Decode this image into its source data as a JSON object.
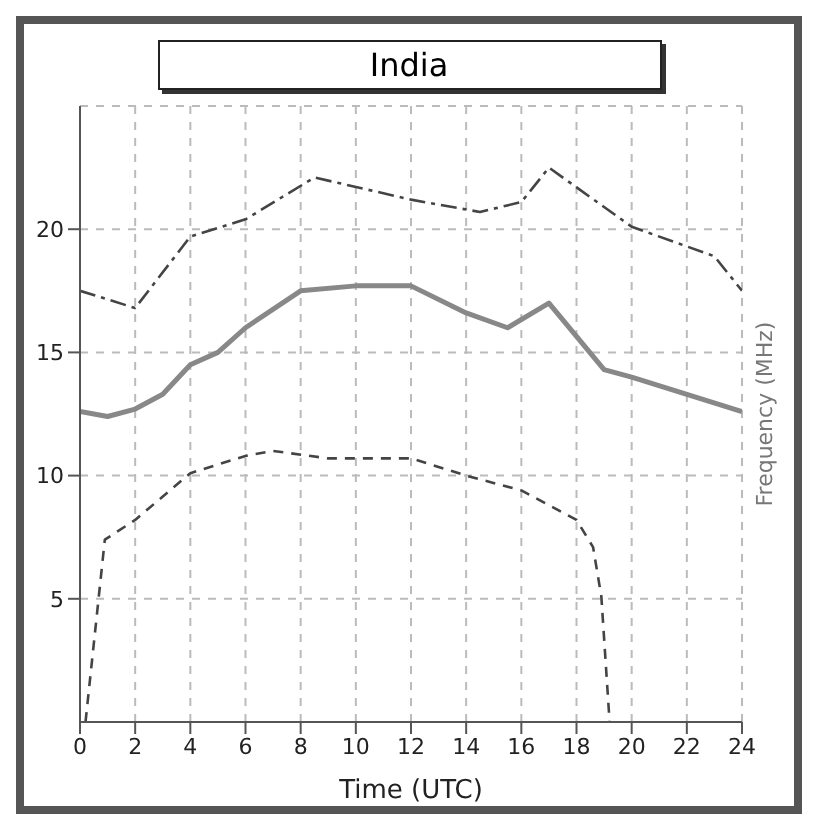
{
  "chart_data": {
    "type": "line",
    "title": "India",
    "xlabel": "Time (UTC)",
    "ylabel": "Frequency (MHz)",
    "xlim": [
      0,
      24
    ],
    "xticks": [
      0,
      2,
      4,
      6,
      8,
      10,
      12,
      14,
      16,
      18,
      20,
      22,
      24
    ],
    "ylim": [
      0,
      25
    ],
    "yticks": [
      5,
      10,
      15,
      20
    ],
    "grid": true,
    "marker": "none",
    "series": [
      {
        "color": "#444444",
        "line_style": "dashdot",
        "x": [
          0,
          2,
          4,
          6,
          8.5,
          12,
          14.5,
          16,
          17,
          20,
          23,
          24
        ],
        "values": [
          17.5,
          16.8,
          19.7,
          20.4,
          22.1,
          21.2,
          20.7,
          21.1,
          22.5,
          20.1,
          18.9,
          17.5
        ]
      },
      {
        "color": "#888888",
        "line_style": "solid",
        "x": [
          0,
          1,
          2,
          3,
          4,
          5,
          6,
          8,
          10,
          12,
          14,
          15.5,
          17,
          19,
          20,
          24
        ],
        "values": [
          12.6,
          12.4,
          12.7,
          13.3,
          14.5,
          15.0,
          16.0,
          17.5,
          17.7,
          17.7,
          16.6,
          16.0,
          17.0,
          14.3,
          14.0,
          12.6
        ]
      },
      {
        "color": "#444444",
        "line_style": "dashed",
        "x": [
          0.2,
          0.9,
          2,
          4,
          6,
          7,
          9,
          12,
          14,
          16,
          18,
          18.6,
          18.9,
          19.2
        ],
        "values": [
          0,
          7.4,
          8.2,
          10.1,
          10.8,
          11.0,
          10.7,
          10.7,
          10.0,
          9.4,
          8.2,
          7.1,
          5.1,
          0
        ]
      }
    ]
  }
}
